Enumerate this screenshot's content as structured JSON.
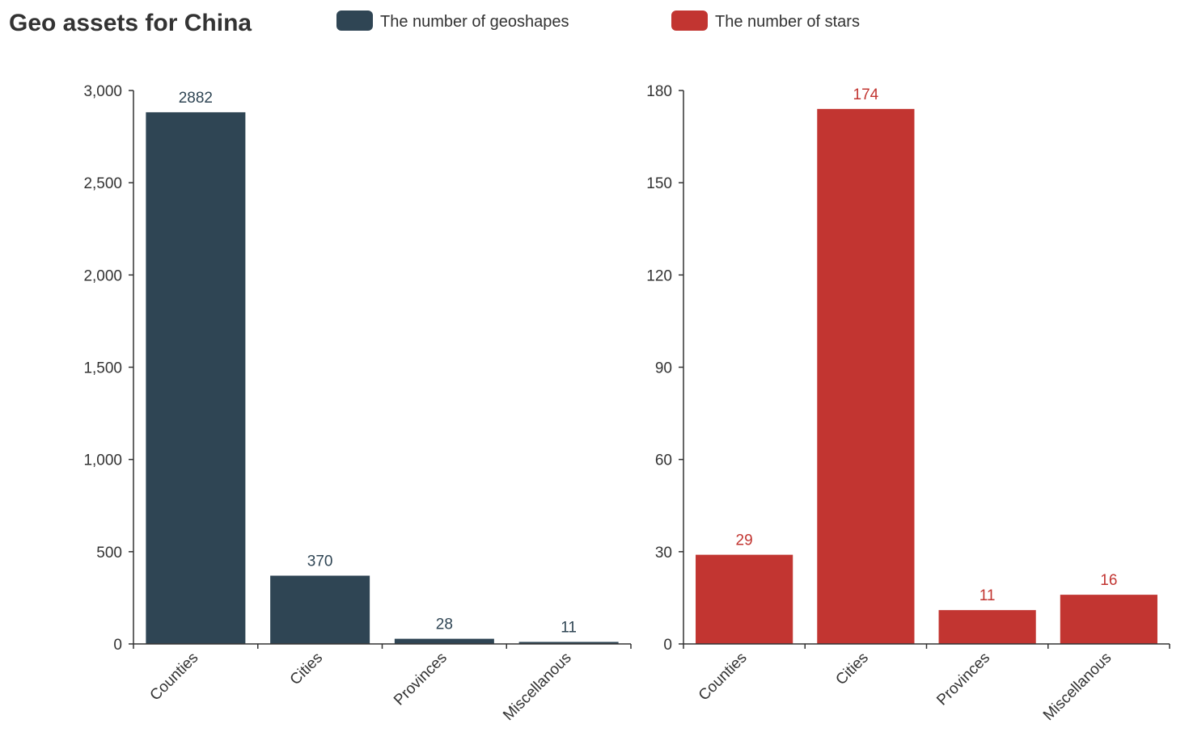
{
  "title": "Geo assets for China",
  "legend": [
    {
      "label": "The number of geoshapes",
      "color": "#2f4554"
    },
    {
      "label": "The number of stars",
      "color": "#c23531"
    }
  ],
  "chart_data": [
    {
      "type": "bar",
      "title": "Geo assets for China",
      "series_name": "The number of geoshapes",
      "color": "#2f4554",
      "categories": [
        "Counties",
        "Cities",
        "Provinces",
        "Miscellanous"
      ],
      "values": [
        2882,
        370,
        28,
        11
      ],
      "ylim": [
        0,
        3000
      ],
      "yticks": [
        0,
        500,
        1000,
        1500,
        2000,
        2500,
        3000
      ],
      "ytick_labels": [
        "0",
        "500",
        "1,000",
        "1,500",
        "2,000",
        "2,500",
        "3,000"
      ],
      "grid": false,
      "legend_position": "top"
    },
    {
      "type": "bar",
      "series_name": "The number of stars",
      "color": "#c23531",
      "categories": [
        "Counties",
        "Cities",
        "Provinces",
        "Miscellanous"
      ],
      "values": [
        29,
        174,
        11,
        16
      ],
      "ylim": [
        0,
        180
      ],
      "yticks": [
        0,
        30,
        60,
        90,
        120,
        150,
        180
      ],
      "ytick_labels": [
        "0",
        "30",
        "60",
        "90",
        "120",
        "150",
        "180"
      ],
      "grid": false,
      "legend_position": "top"
    }
  ]
}
